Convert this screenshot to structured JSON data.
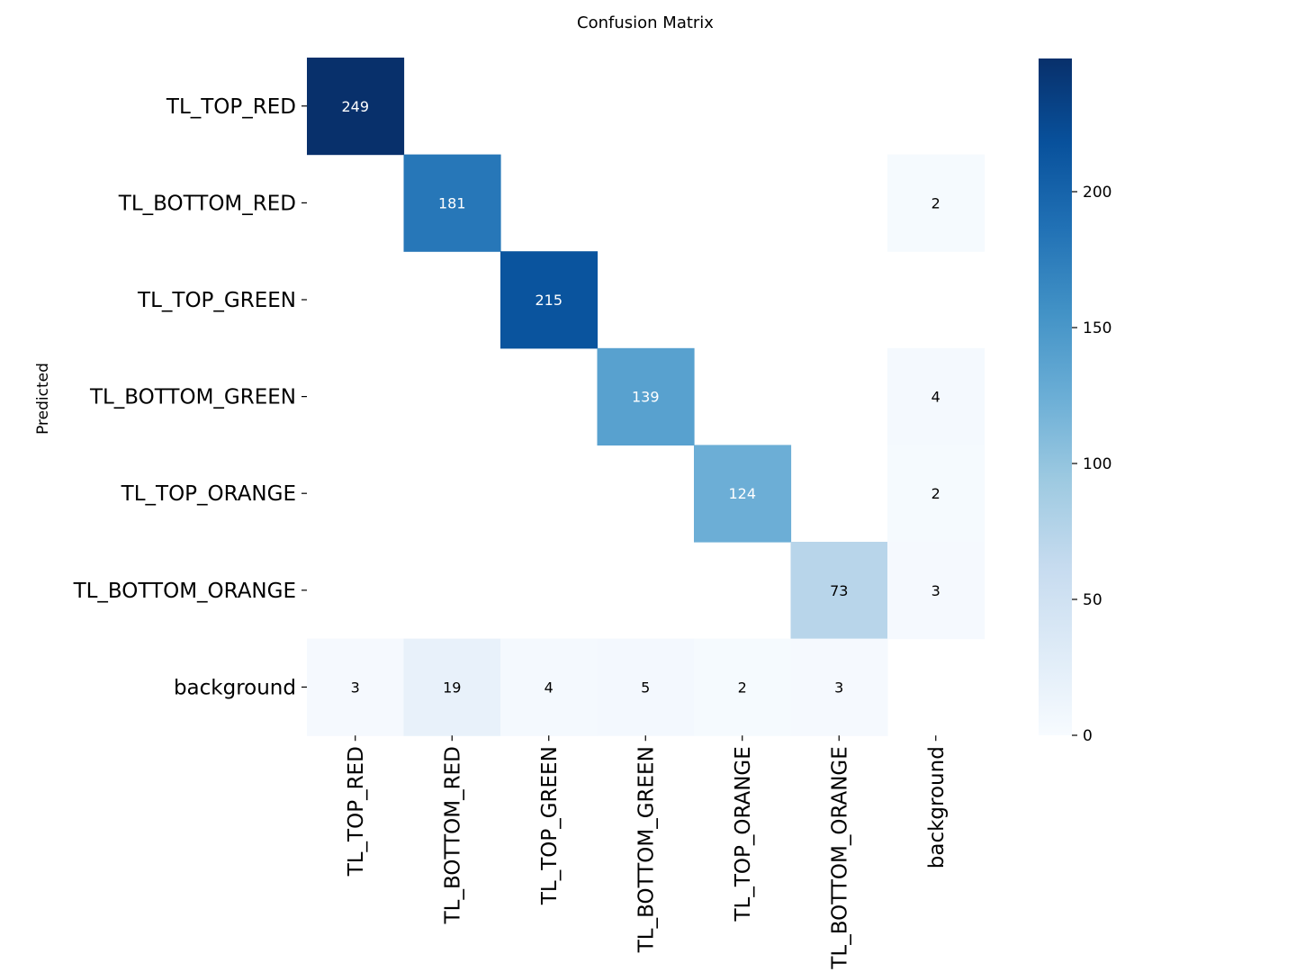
{
  "chart_data": {
    "type": "heatmap",
    "title": "Confusion Matrix",
    "xlabel": "",
    "ylabel": "Predicted",
    "rows": [
      "TL_TOP_RED",
      "TL_BOTTOM_RED",
      "TL_TOP_GREEN",
      "TL_BOTTOM_GREEN",
      "TL_TOP_ORANGE",
      "TL_BOTTOM_ORANGE",
      "background"
    ],
    "columns": [
      "TL_TOP_RED",
      "TL_BOTTOM_RED",
      "TL_TOP_GREEN",
      "TL_BOTTOM_GREEN",
      "TL_TOP_ORANGE",
      "TL_BOTTOM_ORANGE",
      "background"
    ],
    "values": [
      [
        249,
        null,
        null,
        null,
        null,
        null,
        null
      ],
      [
        null,
        181,
        null,
        null,
        null,
        null,
        2
      ],
      [
        null,
        null,
        215,
        null,
        null,
        null,
        null
      ],
      [
        null,
        null,
        null,
        139,
        null,
        null,
        4
      ],
      [
        null,
        null,
        null,
        null,
        124,
        null,
        2
      ],
      [
        null,
        null,
        null,
        null,
        null,
        73,
        3
      ],
      [
        3,
        19,
        4,
        5,
        2,
        3,
        null
      ]
    ],
    "colorscale": "Blues",
    "vmin": 0,
    "vmax": 249,
    "colorbar_ticks": [
      0,
      50,
      100,
      150,
      200
    ]
  }
}
